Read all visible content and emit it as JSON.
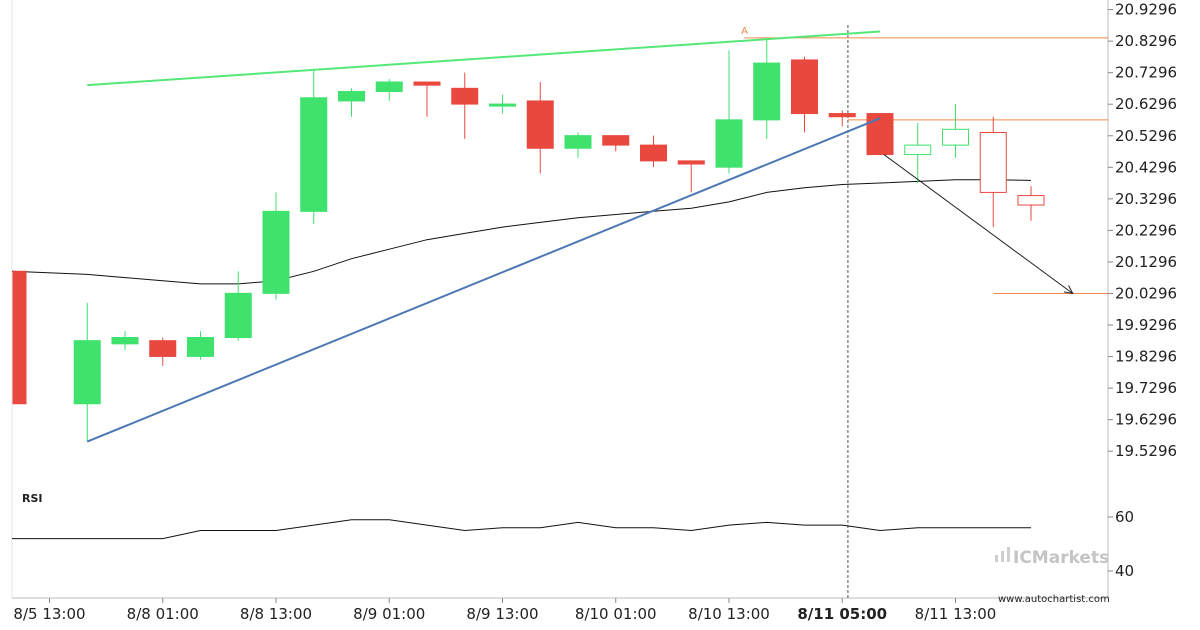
{
  "chart_data": {
    "type": "candlestick",
    "x_tick_labels": [
      "8/5 13:00",
      "8/8 01:00",
      "8/8 13:00",
      "8/9 01:00",
      "8/9 13:00",
      "8/10 01:00",
      "8/10 13:00",
      "8/11 05:00",
      "8/11 13:00"
    ],
    "highlighted_x_label": "8/11 05:00",
    "y_tick_labels": [
      "20.9296",
      "20.8296",
      "20.7296",
      "20.6296",
      "20.5296",
      "20.4296",
      "20.3296",
      "20.2296",
      "20.1296",
      "20.0296",
      "19.9296",
      "19.8296",
      "19.7296",
      "19.6296",
      "19.5296"
    ],
    "ylim": [
      19.47,
      20.96
    ],
    "candles": [
      {
        "o": 20.1,
        "h": 20.1,
        "l": 19.68,
        "c": 19.68
      },
      {
        "o": 19.68,
        "h": 20.0,
        "l": 19.56,
        "c": 19.88
      },
      {
        "o": 19.87,
        "h": 19.91,
        "l": 19.85,
        "c": 19.89
      },
      {
        "o": 19.88,
        "h": 19.89,
        "l": 19.8,
        "c": 19.83
      },
      {
        "o": 19.83,
        "h": 19.91,
        "l": 19.82,
        "c": 19.89
      },
      {
        "o": 19.89,
        "h": 20.1,
        "l": 19.88,
        "c": 20.03
      },
      {
        "o": 20.03,
        "h": 20.35,
        "l": 20.01,
        "c": 20.29
      },
      {
        "o": 20.29,
        "h": 20.74,
        "l": 20.25,
        "c": 20.65
      },
      {
        "o": 20.64,
        "h": 20.68,
        "l": 20.59,
        "c": 20.67
      },
      {
        "o": 20.67,
        "h": 20.71,
        "l": 20.64,
        "c": 20.7
      },
      {
        "o": 20.7,
        "h": 20.7,
        "l": 20.59,
        "c": 20.69
      },
      {
        "o": 20.68,
        "h": 20.73,
        "l": 20.52,
        "c": 20.63
      },
      {
        "o": 20.63,
        "h": 20.66,
        "l": 20.6,
        "c": 20.63
      },
      {
        "o": 20.64,
        "h": 20.7,
        "l": 20.41,
        "c": 20.49
      },
      {
        "o": 20.49,
        "h": 20.54,
        "l": 20.46,
        "c": 20.53
      },
      {
        "o": 20.53,
        "h": 20.53,
        "l": 20.48,
        "c": 20.5
      },
      {
        "o": 20.5,
        "h": 20.53,
        "l": 20.43,
        "c": 20.45
      },
      {
        "o": 20.45,
        "h": 20.45,
        "l": 20.35,
        "c": 20.44
      },
      {
        "o": 20.43,
        "h": 20.8,
        "l": 20.41,
        "c": 20.58
      },
      {
        "o": 20.58,
        "h": 20.84,
        "l": 20.52,
        "c": 20.76
      },
      {
        "o": 20.77,
        "h": 20.78,
        "l": 20.54,
        "c": 20.6
      },
      {
        "o": 20.6,
        "h": 20.61,
        "l": 20.56,
        "c": 20.59
      },
      {
        "o": 20.6,
        "h": 20.6,
        "l": 20.47,
        "c": 20.47
      }
    ],
    "projection_candles": [
      {
        "o": 20.47,
        "h": 20.57,
        "l": 20.38,
        "c": 20.5
      },
      {
        "o": 20.5,
        "h": 20.63,
        "l": 20.46,
        "c": 20.55
      },
      {
        "o": 20.54,
        "h": 20.59,
        "l": 20.24,
        "c": 20.35
      },
      {
        "o": 20.34,
        "h": 20.37,
        "l": 20.26,
        "c": 20.31
      }
    ],
    "moving_average": [
      20.1,
      20.09,
      20.08,
      20.07,
      20.06,
      20.06,
      20.07,
      20.1,
      20.14,
      20.17,
      20.2,
      20.22,
      20.24,
      20.255,
      20.27,
      20.28,
      20.29,
      20.3,
      20.32,
      20.35,
      20.365,
      20.375,
      20.38,
      20.385,
      20.39,
      20.39,
      20.388
    ],
    "trend_upper": {
      "x1": 1,
      "y1": 20.69,
      "x2": 22,
      "y2": 20.86
    },
    "trend_lower": {
      "x1": 1,
      "y1": 19.56,
      "x2": 22,
      "y2": 20.585
    },
    "resistance_level": 20.84,
    "support_level": 20.58,
    "target_level": 20.0296,
    "forecast_arrow": {
      "x1": 22,
      "y1": 20.47,
      "x2": 27,
      "y2": 20.0296
    },
    "point_label": "A",
    "rsi": {
      "label": "RSI",
      "ticks": [
        "60",
        "40"
      ],
      "ylim": [
        30,
        70
      ],
      "values": [
        52,
        52,
        52,
        52,
        55,
        55,
        55,
        57,
        59,
        59,
        57,
        55,
        56,
        56,
        58,
        56,
        56,
        55,
        57,
        58,
        57,
        57,
        55,
        56,
        56,
        56,
        56
      ]
    },
    "colors": {
      "up": "#3ee26c",
      "down": "#e8483e",
      "trend_upper": "#55e879",
      "trend_lower": "#4c78b5",
      "levels": "#f08a4b",
      "ma": "#111111"
    }
  },
  "watermark": "ICMarkets",
  "credit": "www.autochartist.com"
}
